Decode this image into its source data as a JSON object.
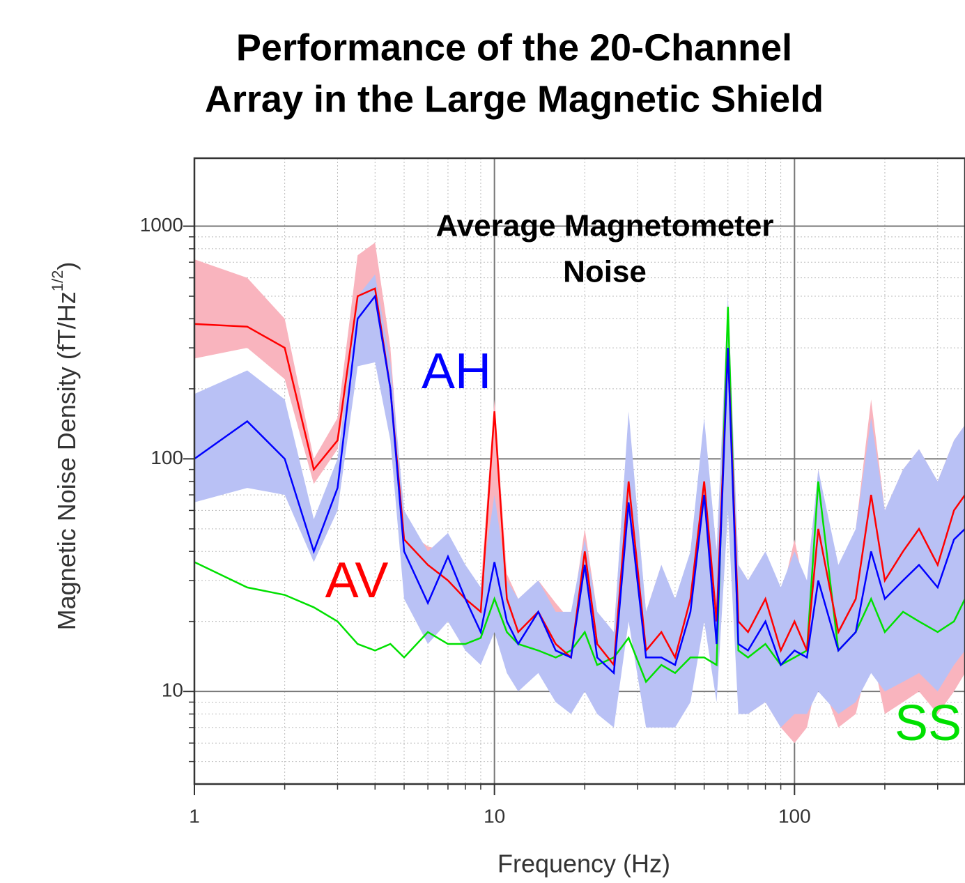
{
  "chart_data": {
    "type": "line",
    "title": [
      "Performance of the 20-Channel",
      "Array in the Large Magnetic Shield"
    ],
    "annotation": [
      "Average Magnetometer",
      "Noise"
    ],
    "xlabel": "Frequency (Hz)",
    "ylabel": "Magnetic Noise Density (fT/Hz",
    "ylabel_sup": "1/2",
    "ylabel_end": ")",
    "xscale": "log",
    "yscale": "log",
    "grid": true,
    "xlim": [
      1,
      370
    ],
    "ylim": [
      4,
      1960
    ],
    "xticks": [
      1,
      10,
      100
    ],
    "yticks": [
      10,
      100,
      1000
    ],
    "x": [
      1,
      1.5,
      2,
      2.5,
      3,
      3.5,
      4,
      4.5,
      5,
      6,
      7,
      8,
      9,
      10,
      11,
      12,
      14,
      16,
      18,
      20,
      22,
      25,
      28,
      32,
      36,
      40,
      45,
      50,
      55,
      60,
      65,
      70,
      80,
      90,
      100,
      110,
      120,
      140,
      160,
      180,
      200,
      230,
      260,
      300,
      340,
      370
    ],
    "series": [
      {
        "name": "AV",
        "color": "#ff0000",
        "band_color": "#f9b4be",
        "values": [
          380,
          370,
          300,
          90,
          120,
          500,
          540,
          200,
          45,
          35,
          30,
          25,
          22,
          160,
          25,
          18,
          22,
          16,
          14,
          40,
          16,
          13,
          80,
          15,
          18,
          14,
          25,
          80,
          20,
          300,
          20,
          18,
          25,
          15,
          20,
          15,
          50,
          18,
          25,
          70,
          30,
          40,
          50,
          35,
          60,
          70
        ],
        "lower": [
          270,
          300,
          220,
          78,
          110,
          400,
          420,
          150,
          38,
          30,
          24,
          20,
          17,
          60,
          16,
          12,
          14,
          11,
          10,
          18,
          11,
          9,
          30,
          9,
          10,
          8,
          12,
          25,
          10,
          80,
          9,
          8,
          9,
          7,
          6,
          7,
          12,
          7,
          8,
          15,
          8,
          9,
          10,
          8,
          10,
          12
        ],
        "upper": [
          720,
          600,
          400,
          100,
          150,
          750,
          850,
          300,
          50,
          42,
          40,
          30,
          28,
          180,
          32,
          25,
          30,
          24,
          20,
          50,
          22,
          18,
          150,
          22,
          35,
          22,
          40,
          140,
          40,
          450,
          35,
          30,
          40,
          25,
          45,
          25,
          90,
          30,
          50,
          180,
          60,
          90,
          110,
          80,
          120,
          140
        ]
      },
      {
        "name": "AH",
        "color": "#0000ff",
        "band_color": "#b9c1f5",
        "values": [
          100,
          145,
          100,
          40,
          75,
          400,
          500,
          200,
          40,
          24,
          38,
          25,
          18,
          36,
          20,
          16,
          22,
          15,
          14,
          35,
          14,
          12,
          65,
          14,
          14,
          13,
          22,
          70,
          16,
          300,
          16,
          15,
          20,
          13,
          15,
          14,
          30,
          15,
          18,
          40,
          25,
          30,
          35,
          28,
          45,
          50
        ],
        "lower": [
          65,
          75,
          70,
          36,
          60,
          250,
          260,
          120,
          25,
          16,
          20,
          15,
          13,
          18,
          12,
          10,
          12,
          9,
          8,
          10,
          8,
          7,
          20,
          7,
          7,
          7,
          9,
          20,
          9,
          60,
          8,
          8,
          9,
          7,
          8,
          8,
          10,
          8,
          9,
          12,
          10,
          11,
          12,
          10,
          13,
          15
        ],
        "upper": [
          190,
          240,
          180,
          55,
          100,
          500,
          620,
          260,
          60,
          40,
          48,
          35,
          28,
          70,
          30,
          25,
          30,
          22,
          22,
          45,
          22,
          18,
          160,
          22,
          35,
          25,
          40,
          150,
          40,
          500,
          35,
          30,
          40,
          28,
          40,
          30,
          90,
          35,
          50,
          150,
          60,
          90,
          110,
          80,
          120,
          140
        ]
      },
      {
        "name": "SS",
        "color": "#00e000",
        "values": [
          36,
          28,
          26,
          23,
          20,
          16,
          15,
          16,
          14,
          18,
          16,
          16,
          17,
          25,
          18,
          16,
          15,
          14,
          15,
          18,
          13,
          14,
          17,
          11,
          13,
          12,
          14,
          14,
          13,
          450,
          15,
          14,
          16,
          13,
          14,
          15,
          80,
          15,
          18,
          25,
          18,
          22,
          20,
          18,
          20,
          25
        ]
      }
    ]
  }
}
